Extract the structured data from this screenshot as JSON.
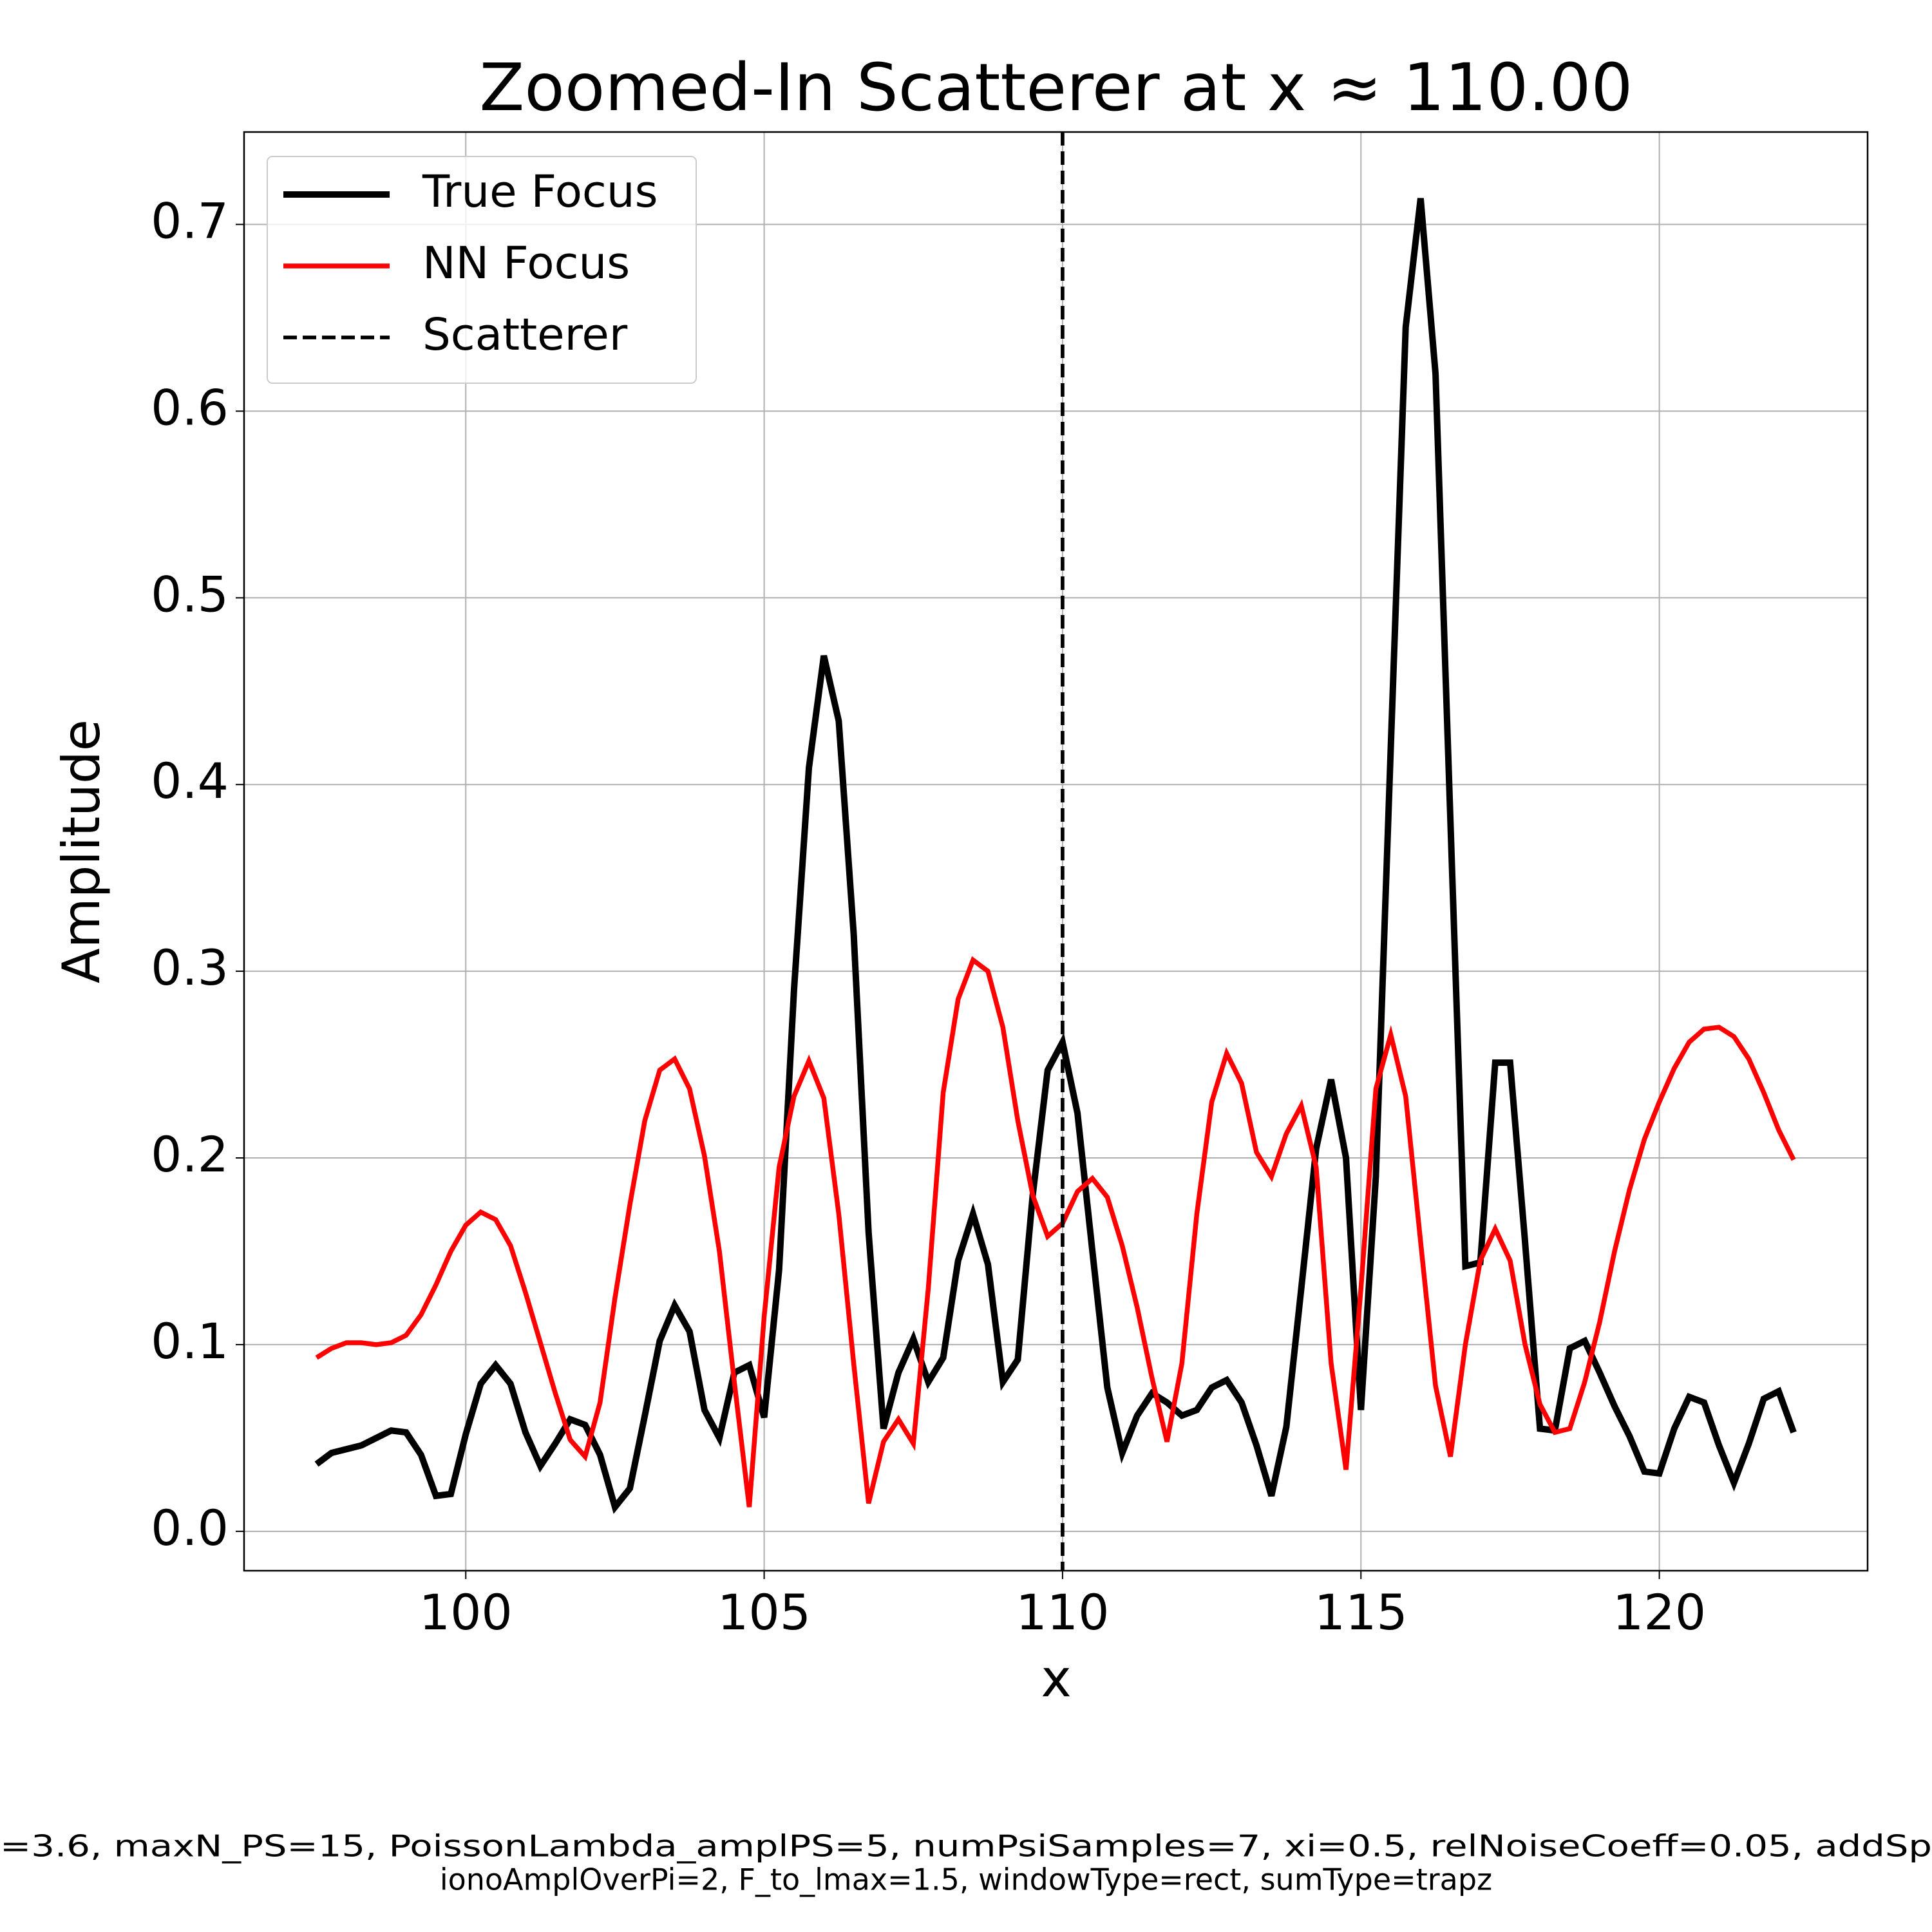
{
  "chart_data": {
    "type": "line",
    "title": "Zoomed-In Scatterer at x ≈ 110.00",
    "x_label": "x",
    "y_label": "Amplitude",
    "x": [
      97.5,
      97.75,
      98,
      98.25,
      98.5,
      98.75,
      99,
      99.25,
      99.5,
      99.75,
      100,
      100.25,
      100.5,
      100.75,
      101,
      101.25,
      101.5,
      101.75,
      102,
      102.25,
      102.5,
      102.75,
      103,
      103.25,
      103.5,
      103.75,
      104,
      104.25,
      104.5,
      104.75,
      105,
      105.25,
      105.5,
      105.75,
      106,
      106.25,
      106.5,
      106.75,
      107,
      107.25,
      107.5,
      107.75,
      108,
      108.25,
      108.5,
      108.75,
      109,
      109.25,
      109.5,
      109.75,
      110,
      110.25,
      110.5,
      110.75,
      111,
      111.25,
      111.5,
      111.75,
      112,
      112.25,
      112.5,
      112.75,
      113,
      113.25,
      113.5,
      113.75,
      114,
      114.25,
      114.5,
      114.75,
      115,
      115.25,
      115.5,
      115.75,
      116,
      116.25,
      116.5,
      116.75,
      117,
      117.25,
      117.5,
      117.75,
      118,
      118.25,
      118.5,
      118.75,
      119,
      119.25,
      119.5,
      119.75,
      120,
      120.25,
      120.5,
      120.75,
      121,
      121.25,
      121.5,
      121.75,
      122,
      122.25
    ],
    "series": [
      {
        "name": "True Focus",
        "color": "#000000",
        "values": [
          0.036,
          0.042,
          0.044,
          0.046,
          0.05,
          0.054,
          0.053,
          0.041,
          0.019,
          0.02,
          0.052,
          0.079,
          0.089,
          0.079,
          0.053,
          0.035,
          0.047,
          0.06,
          0.057,
          0.041,
          0.013,
          0.023,
          0.062,
          0.102,
          0.121,
          0.107,
          0.065,
          0.05,
          0.085,
          0.089,
          0.061,
          0.14,
          0.29,
          0.409,
          0.469,
          0.434,
          0.32,
          0.16,
          0.055,
          0.085,
          0.103,
          0.08,
          0.093,
          0.145,
          0.17,
          0.143,
          0.08,
          0.092,
          0.18,
          0.247,
          0.262,
          0.224,
          0.15,
          0.077,
          0.042,
          0.062,
          0.074,
          0.069,
          0.062,
          0.065,
          0.077,
          0.081,
          0.069,
          0.046,
          0.019,
          0.056,
          0.13,
          0.205,
          0.242,
          0.2,
          0.065,
          0.19,
          0.42,
          0.645,
          0.714,
          0.62,
          0.38,
          0.142,
          0.144,
          0.251,
          0.251,
          0.155,
          0.055,
          0.054,
          0.098,
          0.102,
          0.085,
          0.067,
          0.051,
          0.032,
          0.031,
          0.055,
          0.072,
          0.069,
          0.046,
          0.026,
          0.047,
          0.071,
          0.075,
          0.053
        ]
      },
      {
        "name": "NN Focus",
        "color": "#ff0000",
        "values": [
          0.093,
          0.098,
          0.101,
          0.101,
          0.1,
          0.101,
          0.105,
          0.116,
          0.132,
          0.15,
          0.164,
          0.171,
          0.167,
          0.153,
          0.128,
          0.101,
          0.074,
          0.049,
          0.04,
          0.069,
          0.125,
          0.175,
          0.22,
          0.247,
          0.253,
          0.237,
          0.201,
          0.15,
          0.08,
          0.013,
          0.115,
          0.195,
          0.233,
          0.252,
          0.232,
          0.17,
          0.09,
          0.015,
          0.048,
          0.06,
          0.047,
          0.13,
          0.235,
          0.285,
          0.306,
          0.3,
          0.27,
          0.22,
          0.18,
          0.158,
          0.165,
          0.182,
          0.189,
          0.179,
          0.153,
          0.12,
          0.082,
          0.048,
          0.09,
          0.17,
          0.23,
          0.256,
          0.24,
          0.203,
          0.19,
          0.213,
          0.228,
          0.195,
          0.09,
          0.033,
          0.13,
          0.237,
          0.266,
          0.233,
          0.155,
          0.078,
          0.04,
          0.1,
          0.145,
          0.162,
          0.145,
          0.1,
          0.068,
          0.053,
          0.055,
          0.08,
          0.112,
          0.15,
          0.183,
          0.21,
          0.23,
          0.248,
          0.262,
          0.269,
          0.27,
          0.265,
          0.253,
          0.235,
          0.215,
          0.199
        ]
      }
    ],
    "scatterer": {
      "name": "Scatterer",
      "x": 110,
      "color": "#000000"
    },
    "xlim": [
      96.285,
      123.49
    ],
    "ylim": [
      -0.0211,
      0.7495
    ],
    "xticks": [
      100,
      105,
      110,
      115,
      120
    ],
    "yticks": [
      {
        "value": 0,
        "label": "0.0"
      },
      0.1,
      0.2,
      0.3,
      0.4,
      0.5,
      0.6,
      0.7
    ],
    "grid": true,
    "legend": "upper left",
    "footer": [
      "=3.6, maxN_PS=15, PoissonLambda_amplPS=5, numPsiSamples=7, xi=0.5, relNoiseCoeff=0.05, addSp",
      "ionoAmplOverPi=2, F_to_lmax=1.5, windowType=rect, sumType=trapz"
    ]
  }
}
